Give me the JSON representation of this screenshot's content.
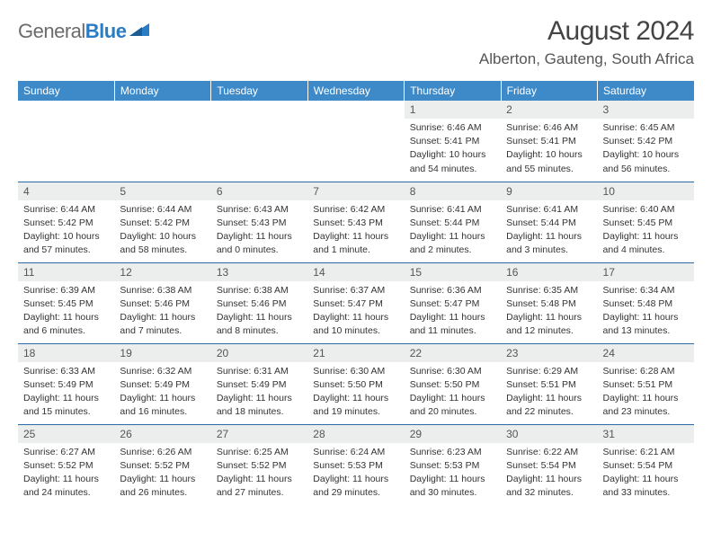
{
  "logo": {
    "word1": "General",
    "word2": "Blue"
  },
  "title": "August 2024",
  "location": "Alberton, Gauteng, South Africa",
  "colors": {
    "header_bg": "#3e8ac9",
    "row_divider": "#2a6aa6",
    "daynum_bg": "#eceded",
    "logo_gray": "#6b6b6b",
    "logo_blue": "#2a7cc4"
  },
  "weekdays": [
    "Sunday",
    "Monday",
    "Tuesday",
    "Wednesday",
    "Thursday",
    "Friday",
    "Saturday"
  ],
  "weeks": [
    [
      null,
      null,
      null,
      null,
      {
        "n": "1",
        "sr": "Sunrise: 6:46 AM",
        "ss": "Sunset: 5:41 PM",
        "d1": "Daylight: 10 hours",
        "d2": "and 54 minutes."
      },
      {
        "n": "2",
        "sr": "Sunrise: 6:46 AM",
        "ss": "Sunset: 5:41 PM",
        "d1": "Daylight: 10 hours",
        "d2": "and 55 minutes."
      },
      {
        "n": "3",
        "sr": "Sunrise: 6:45 AM",
        "ss": "Sunset: 5:42 PM",
        "d1": "Daylight: 10 hours",
        "d2": "and 56 minutes."
      }
    ],
    [
      {
        "n": "4",
        "sr": "Sunrise: 6:44 AM",
        "ss": "Sunset: 5:42 PM",
        "d1": "Daylight: 10 hours",
        "d2": "and 57 minutes."
      },
      {
        "n": "5",
        "sr": "Sunrise: 6:44 AM",
        "ss": "Sunset: 5:42 PM",
        "d1": "Daylight: 10 hours",
        "d2": "and 58 minutes."
      },
      {
        "n": "6",
        "sr": "Sunrise: 6:43 AM",
        "ss": "Sunset: 5:43 PM",
        "d1": "Daylight: 11 hours",
        "d2": "and 0 minutes."
      },
      {
        "n": "7",
        "sr": "Sunrise: 6:42 AM",
        "ss": "Sunset: 5:43 PM",
        "d1": "Daylight: 11 hours",
        "d2": "and 1 minute."
      },
      {
        "n": "8",
        "sr": "Sunrise: 6:41 AM",
        "ss": "Sunset: 5:44 PM",
        "d1": "Daylight: 11 hours",
        "d2": "and 2 minutes."
      },
      {
        "n": "9",
        "sr": "Sunrise: 6:41 AM",
        "ss": "Sunset: 5:44 PM",
        "d1": "Daylight: 11 hours",
        "d2": "and 3 minutes."
      },
      {
        "n": "10",
        "sr": "Sunrise: 6:40 AM",
        "ss": "Sunset: 5:45 PM",
        "d1": "Daylight: 11 hours",
        "d2": "and 4 minutes."
      }
    ],
    [
      {
        "n": "11",
        "sr": "Sunrise: 6:39 AM",
        "ss": "Sunset: 5:45 PM",
        "d1": "Daylight: 11 hours",
        "d2": "and 6 minutes."
      },
      {
        "n": "12",
        "sr": "Sunrise: 6:38 AM",
        "ss": "Sunset: 5:46 PM",
        "d1": "Daylight: 11 hours",
        "d2": "and 7 minutes."
      },
      {
        "n": "13",
        "sr": "Sunrise: 6:38 AM",
        "ss": "Sunset: 5:46 PM",
        "d1": "Daylight: 11 hours",
        "d2": "and 8 minutes."
      },
      {
        "n": "14",
        "sr": "Sunrise: 6:37 AM",
        "ss": "Sunset: 5:47 PM",
        "d1": "Daylight: 11 hours",
        "d2": "and 10 minutes."
      },
      {
        "n": "15",
        "sr": "Sunrise: 6:36 AM",
        "ss": "Sunset: 5:47 PM",
        "d1": "Daylight: 11 hours",
        "d2": "and 11 minutes."
      },
      {
        "n": "16",
        "sr": "Sunrise: 6:35 AM",
        "ss": "Sunset: 5:48 PM",
        "d1": "Daylight: 11 hours",
        "d2": "and 12 minutes."
      },
      {
        "n": "17",
        "sr": "Sunrise: 6:34 AM",
        "ss": "Sunset: 5:48 PM",
        "d1": "Daylight: 11 hours",
        "d2": "and 13 minutes."
      }
    ],
    [
      {
        "n": "18",
        "sr": "Sunrise: 6:33 AM",
        "ss": "Sunset: 5:49 PM",
        "d1": "Daylight: 11 hours",
        "d2": "and 15 minutes."
      },
      {
        "n": "19",
        "sr": "Sunrise: 6:32 AM",
        "ss": "Sunset: 5:49 PM",
        "d1": "Daylight: 11 hours",
        "d2": "and 16 minutes."
      },
      {
        "n": "20",
        "sr": "Sunrise: 6:31 AM",
        "ss": "Sunset: 5:49 PM",
        "d1": "Daylight: 11 hours",
        "d2": "and 18 minutes."
      },
      {
        "n": "21",
        "sr": "Sunrise: 6:30 AM",
        "ss": "Sunset: 5:50 PM",
        "d1": "Daylight: 11 hours",
        "d2": "and 19 minutes."
      },
      {
        "n": "22",
        "sr": "Sunrise: 6:30 AM",
        "ss": "Sunset: 5:50 PM",
        "d1": "Daylight: 11 hours",
        "d2": "and 20 minutes."
      },
      {
        "n": "23",
        "sr": "Sunrise: 6:29 AM",
        "ss": "Sunset: 5:51 PM",
        "d1": "Daylight: 11 hours",
        "d2": "and 22 minutes."
      },
      {
        "n": "24",
        "sr": "Sunrise: 6:28 AM",
        "ss": "Sunset: 5:51 PM",
        "d1": "Daylight: 11 hours",
        "d2": "and 23 minutes."
      }
    ],
    [
      {
        "n": "25",
        "sr": "Sunrise: 6:27 AM",
        "ss": "Sunset: 5:52 PM",
        "d1": "Daylight: 11 hours",
        "d2": "and 24 minutes."
      },
      {
        "n": "26",
        "sr": "Sunrise: 6:26 AM",
        "ss": "Sunset: 5:52 PM",
        "d1": "Daylight: 11 hours",
        "d2": "and 26 minutes."
      },
      {
        "n": "27",
        "sr": "Sunrise: 6:25 AM",
        "ss": "Sunset: 5:52 PM",
        "d1": "Daylight: 11 hours",
        "d2": "and 27 minutes."
      },
      {
        "n": "28",
        "sr": "Sunrise: 6:24 AM",
        "ss": "Sunset: 5:53 PM",
        "d1": "Daylight: 11 hours",
        "d2": "and 29 minutes."
      },
      {
        "n": "29",
        "sr": "Sunrise: 6:23 AM",
        "ss": "Sunset: 5:53 PM",
        "d1": "Daylight: 11 hours",
        "d2": "and 30 minutes."
      },
      {
        "n": "30",
        "sr": "Sunrise: 6:22 AM",
        "ss": "Sunset: 5:54 PM",
        "d1": "Daylight: 11 hours",
        "d2": "and 32 minutes."
      },
      {
        "n": "31",
        "sr": "Sunrise: 6:21 AM",
        "ss": "Sunset: 5:54 PM",
        "d1": "Daylight: 11 hours",
        "d2": "and 33 minutes."
      }
    ]
  ]
}
